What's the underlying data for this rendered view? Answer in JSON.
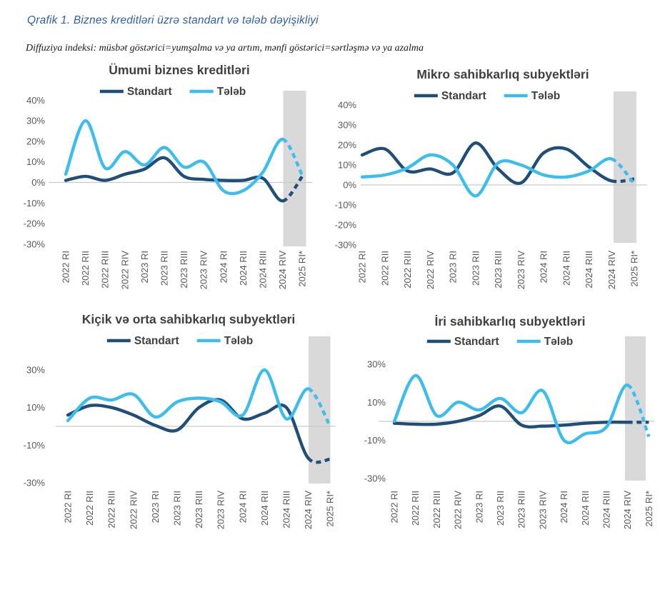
{
  "header": {
    "title": "Qrafik 1. Biznes kreditləri üzrə standart və tələb dəyişikliyi",
    "subtitle": "Diffuziya indeksi: müsbət göstərici=yumşalma və ya artım, mənfi göstərici=sərtləşmə və ya azalma",
    "title_color": "#2E5EA8"
  },
  "colors": {
    "standart": "#1F4E79",
    "teleb": "#3DBDEE",
    "band": "#D9D9D9",
    "gridline": "#C9C9C9",
    "axis_text": "#595959",
    "title_text": "#404040"
  },
  "legend": {
    "items": [
      {
        "label": "Standart",
        "color_key": "standart"
      },
      {
        "label": "Tələb",
        "color_key": "teleb"
      }
    ]
  },
  "chart_data": [
    {
      "id": "umumi",
      "type": "line",
      "title": "Ümumi biznes kreditləri",
      "categories": [
        "2022 RI",
        "2022 RII",
        "2022 RIII",
        "2022 RIV",
        "2023 RI",
        "2023 RII",
        "2023 RIII",
        "2023 RIV",
        "2024 RI",
        "2024 RII",
        "2024 RIII",
        "2024 RIV",
        "2025 RI*"
      ],
      "series": [
        {
          "name": "Standart",
          "color_key": "standart",
          "values": [
            1,
            3,
            1,
            4,
            6.5,
            12,
            3,
            1.5,
            1,
            1,
            2,
            -9,
            3
          ]
        },
        {
          "name": "Tələb",
          "color_key": "teleb",
          "values": [
            4,
            30,
            7,
            15,
            8.5,
            17,
            7.5,
            10,
            -4,
            -4,
            5,
            21,
            3.5
          ]
        }
      ],
      "y_ticks": [
        40,
        30,
        20,
        10,
        0,
        -10,
        -20,
        -30
      ],
      "ylim": [
        -30,
        40
      ],
      "yunit": "%",
      "forecast_band_from": "2024 RIV",
      "dashed_last_segment": true,
      "legend_position": "top"
    },
    {
      "id": "mikro",
      "type": "line",
      "title": "Mikro sahibkarlıq subyektləri",
      "categories": [
        "2022 RI",
        "2022 RII",
        "2022 RIII",
        "2022 RIV",
        "2023 RI",
        "2023 RII",
        "2023 RIII",
        "2023 RIV",
        "2024 RI",
        "2024 RII",
        "2024 RIII",
        "2024 RIV",
        "2025 RI*"
      ],
      "series": [
        {
          "name": "Standart",
          "color_key": "standart",
          "values": [
            15,
            18,
            7,
            8,
            6,
            21,
            8,
            1,
            16,
            18,
            9,
            2,
            3
          ]
        },
        {
          "name": "Tələb",
          "color_key": "teleb",
          "values": [
            4,
            5,
            8.5,
            15,
            10,
            -5.5,
            11,
            10,
            5,
            4,
            7,
            13,
            0.5
          ]
        }
      ],
      "y_ticks": [
        40,
        30,
        20,
        10,
        0,
        -10,
        -20,
        -30
      ],
      "ylim": [
        -30,
        40
      ],
      "yunit": "%",
      "forecast_band_from": "2024 RIV",
      "dashed_last_segment": true,
      "legend_position": "top"
    },
    {
      "id": "kicik",
      "type": "line",
      "title": "Kiçik və orta sahibkarlıq subyektləri",
      "categories": [
        "2022 RI",
        "2022 RII",
        "2022 RIII",
        "2022 RIV",
        "2023 RI",
        "2023 RII",
        "2023 RIII",
        "2023 RIV",
        "2024 RI",
        "2024 RII",
        "2024 RIII",
        "2024 RIV",
        "2025 RI*"
      ],
      "series": [
        {
          "name": "Standart",
          "color_key": "standart",
          "values": [
            6,
            11,
            10,
            6,
            0.5,
            -2,
            10,
            14,
            4,
            7,
            10,
            -17,
            -17.5
          ]
        },
        {
          "name": "Tələb",
          "color_key": "teleb",
          "values": [
            3,
            15,
            14,
            17,
            5,
            13,
            15,
            13,
            6,
            30,
            4,
            20,
            0
          ]
        }
      ],
      "y_ticks": [
        30,
        10,
        -10,
        -30
      ],
      "ylim": [
        -30,
        30
      ],
      "yunit": "%",
      "forecast_band_from": "2024 RIV",
      "dashed_last_segment": true,
      "legend_position": "top"
    },
    {
      "id": "iri",
      "type": "line",
      "title": "İri sahibkarlıq subyektləri",
      "categories": [
        "2022 RI",
        "2022 RII",
        "2022 RIII",
        "2022 RIV",
        "2023 RI",
        "2023 RII",
        "2023 RIII",
        "2023 RIV",
        "2024 RI",
        "2024 RII",
        "2024 RIII",
        "2024 RIV",
        "2025 RI*"
      ],
      "series": [
        {
          "name": "Standart",
          "color_key": "standart",
          "values": [
            -1,
            -1.5,
            -1.5,
            0,
            3,
            8,
            -2,
            -2.5,
            -2,
            -1,
            -0.5,
            -0.5,
            -0.5
          ]
        },
        {
          "name": "Tələb",
          "color_key": "teleb",
          "values": [
            0,
            24,
            3,
            10,
            6,
            12,
            4.5,
            16,
            -10,
            -6.5,
            -3,
            19,
            -8
          ]
        }
      ],
      "y_ticks": [
        30,
        10,
        -10,
        -30
      ],
      "ylim": [
        -30,
        30
      ],
      "yunit": "%",
      "forecast_band_from": "2024 RIV",
      "dashed_last_segment": true,
      "legend_position": "top"
    }
  ]
}
